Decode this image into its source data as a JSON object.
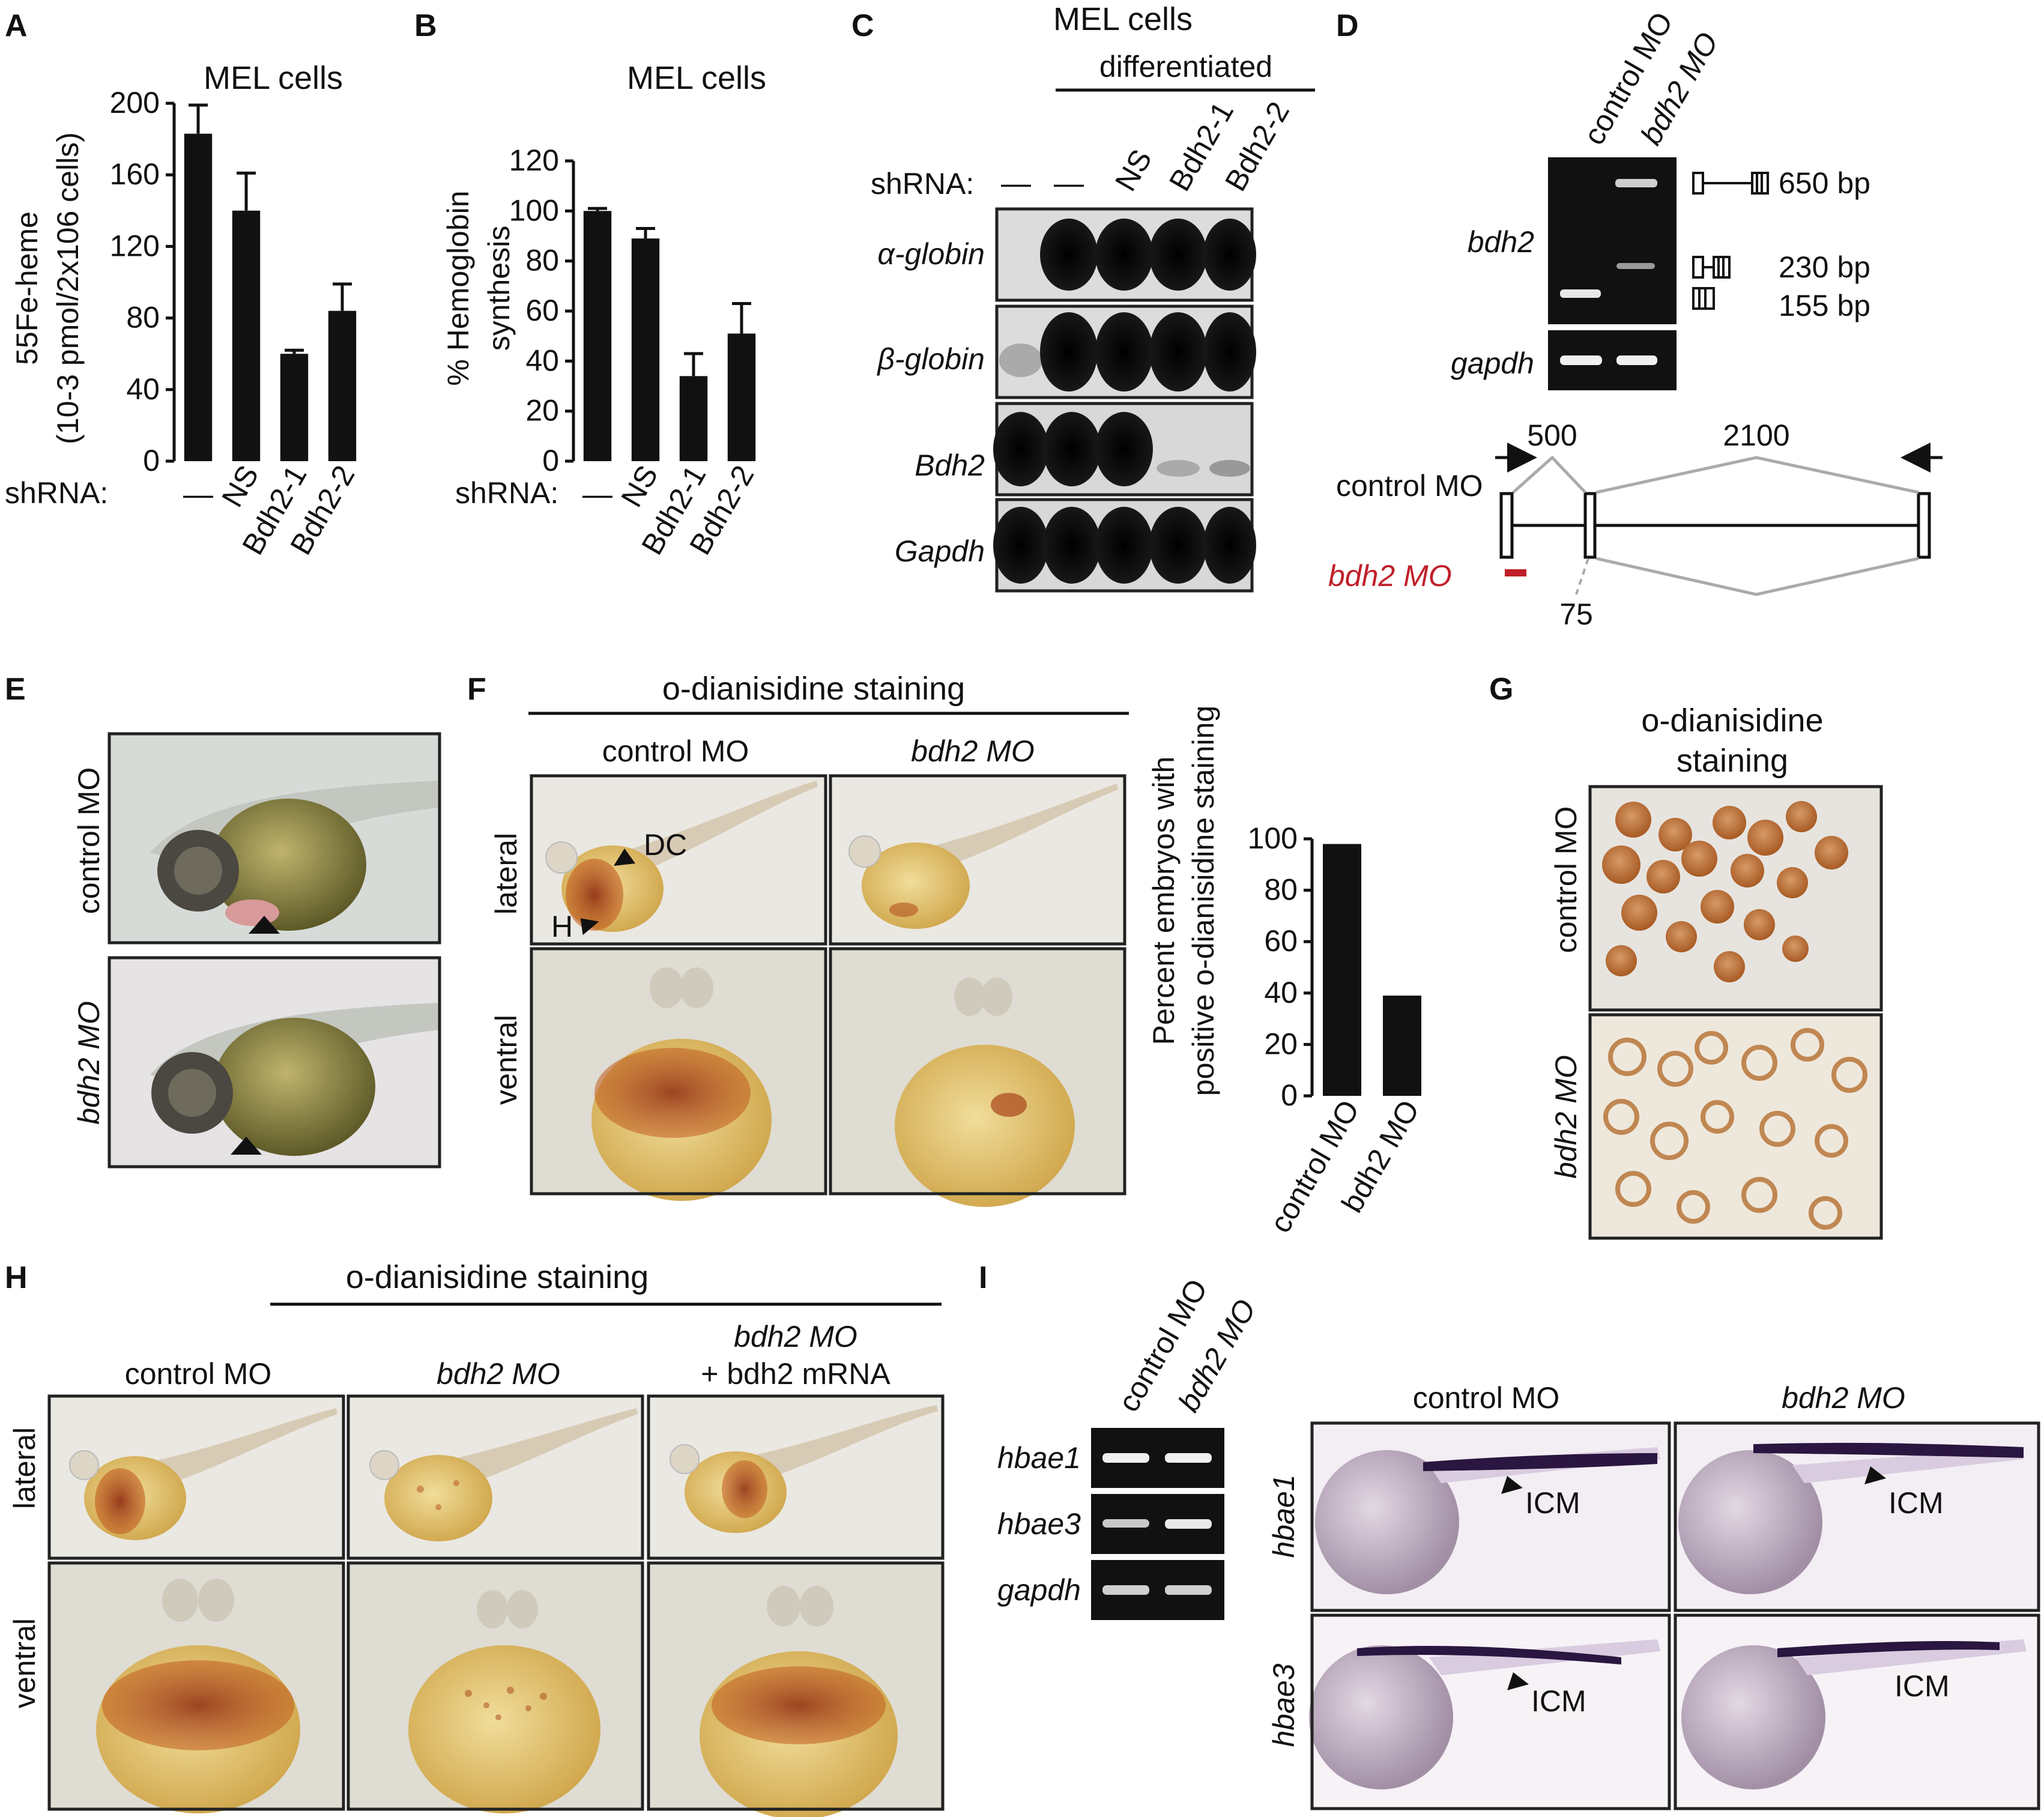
{
  "panels": {
    "A": {
      "letter": "A",
      "title": "MEL cells",
      "ylabel_line1": "55Fe-heme",
      "ylabel_line2": "(10-3 pmol/2x106 cells)",
      "shrna_label": "shRNA:",
      "chart_data": {
        "type": "bar",
        "title": "MEL cells",
        "ylabel": "55Fe-heme (10-3 pmol/2x106 cells)",
        "xlabel": "shRNA:",
        "categories": [
          "—",
          "NS",
          "Bdh2-1",
          "Bdh2-2"
        ],
        "values": [
          183,
          140,
          60,
          84
        ],
        "errors": [
          16,
          21,
          2,
          15
        ],
        "ylim": [
          0,
          200
        ],
        "yticks": [
          0,
          40,
          80,
          120,
          160,
          200
        ]
      }
    },
    "B": {
      "letter": "B",
      "title": "MEL cells",
      "ylabel_line1": "% Hemoglobin",
      "ylabel_line2": "synthesis",
      "shrna_label": "shRNA:",
      "chart_data": {
        "type": "bar",
        "title": "MEL cells",
        "ylabel": "% Hemoglobin synthesis",
        "xlabel": "shRNA:",
        "categories": [
          "—",
          "NS",
          "Bdh2-1",
          "Bdh2-2"
        ],
        "values": [
          100,
          89,
          34,
          51
        ],
        "errors": [
          1,
          4,
          9,
          12
        ],
        "ylim": [
          0,
          120
        ],
        "yticks": [
          0,
          20,
          40,
          60,
          80,
          100,
          120
        ]
      }
    },
    "C": {
      "letter": "C",
      "title": "MEL cells",
      "subtitle": "differentiated",
      "shrna_label": "shRNA:",
      "lanes": [
        "—",
        "—",
        "NS",
        "Bdh2-1",
        "Bdh2-2"
      ],
      "blots": [
        "α-globin",
        "β-globin",
        "Bdh2",
        "Gapdh"
      ]
    },
    "D": {
      "letter": "D",
      "lanes": [
        "control MO",
        "bdh2 MO"
      ],
      "gel_labels": [
        "bdh2",
        "gapdh"
      ],
      "sizes": [
        "650 bp",
        "230 bp",
        "155 bp"
      ],
      "control_label": "control MO",
      "mo_label": "bdh2 MO",
      "lengths": [
        "500",
        "2100",
        "75"
      ]
    },
    "E": {
      "letter": "E",
      "row_labels": [
        "control MO",
        "bdh2 MO"
      ]
    },
    "F": {
      "letter": "F",
      "header": "o-dianisidine staining",
      "col_labels": [
        "control MO",
        "bdh2 MO"
      ],
      "row_labels": [
        "lateral",
        "ventral"
      ],
      "markers": [
        "DC",
        "H"
      ],
      "ylabel_line1": "Percent embryos with",
      "ylabel_line2": "positive o-dianisidine staining",
      "chart_data": {
        "type": "bar",
        "ylabel": "Percent embryos with positive o-dianisidine staining",
        "categories": [
          "control MO",
          "bdh2 MO"
        ],
        "values": [
          98,
          39
        ],
        "ylim": [
          0,
          100
        ],
        "yticks": [
          0,
          20,
          40,
          60,
          80,
          100
        ]
      }
    },
    "G": {
      "letter": "G",
      "header_line1": "o-dianisidine",
      "header_line2": "staining",
      "row_labels": [
        "control MO",
        "bdh2 MO"
      ]
    },
    "H": {
      "letter": "H",
      "header": "o-dianisidine staining",
      "col_labels": [
        "control MO",
        "bdh2 MO",
        "bdh2 MO",
        "+ bdh2 mRNA"
      ],
      "row_labels": [
        "lateral",
        "ventral"
      ]
    },
    "I": {
      "letter": "I",
      "lanes": [
        "control MO",
        "bdh2 MO"
      ],
      "gel_labels": [
        "hbae1",
        "hbae3",
        "gapdh"
      ],
      "col_labels": [
        "control MO",
        "bdh2 MO"
      ],
      "row_labels": [
        "hbae1",
        "hbae3"
      ],
      "marker": "ICM"
    }
  }
}
